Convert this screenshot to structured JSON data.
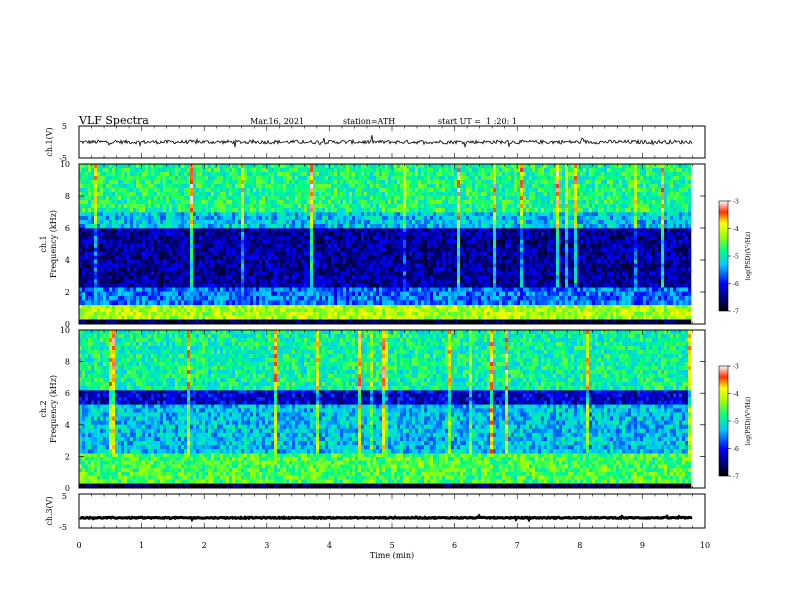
{
  "header": {
    "title": "VLF Spectra",
    "date": "Mar.16, 2021",
    "station": "station=ATH",
    "start_ut": "start UT =  1 :20: 1"
  },
  "chart_data": [
    {
      "type": "line",
      "panel": "ch1-waveform",
      "ylabel": "ch.1(V)",
      "ylim": [
        -5,
        5
      ],
      "yticks": [
        "5",
        "-5"
      ],
      "xlim": [
        0,
        9.8
      ],
      "series": [
        {
          "color": "#000000",
          "description_level": 0,
          "noise_amplitude": 0.6
        }
      ]
    },
    {
      "type": "heatmap",
      "panel": "ch1-spectrogram",
      "ylabel_lines": [
        "ch.1",
        "Frequency (kHz)"
      ],
      "ylim": [
        0,
        10
      ],
      "yticks": [
        "0",
        "2",
        "4",
        "6",
        "8",
        "10"
      ],
      "xlim": [
        0,
        9.8
      ],
      "colorbar": {
        "label": "log(PSD)(V²/Hz)",
        "min": -7,
        "max": -3,
        "ticks": [
          "-3",
          "-4",
          "-5",
          "-6",
          "-7"
        ]
      },
      "bands": [
        {
          "f": [
            0,
            0.3
          ],
          "value": -6.8
        },
        {
          "f": [
            0.3,
            1.2
          ],
          "value": -4.2
        },
        {
          "f": [
            1.2,
            2.3
          ],
          "value": -5.6
        },
        {
          "f": [
            2.3,
            6.0
          ],
          "value": -6.4
        },
        {
          "f": [
            6.0,
            7.0
          ],
          "value": -5.3
        },
        {
          "f": [
            7.0,
            10.0
          ],
          "value": -4.8
        }
      ]
    },
    {
      "type": "heatmap",
      "panel": "ch2-spectrogram",
      "ylabel_lines": [
        "ch.2",
        "Frequency (kHz)"
      ],
      "ylim": [
        0,
        10
      ],
      "yticks": [
        "0",
        "2",
        "4",
        "6",
        "8",
        "10"
      ],
      "xlim": [
        0,
        9.8
      ],
      "colorbar": {
        "label": "log(PSD)(V²/Hz)",
        "min": -7,
        "max": -3,
        "ticks": [
          "-3",
          "-4",
          "-5",
          "-6",
          "-7"
        ]
      },
      "bands": [
        {
          "f": [
            0,
            0.3
          ],
          "value": -6.8
        },
        {
          "f": [
            0.3,
            2.2
          ],
          "value": -4.6
        },
        {
          "f": [
            2.2,
            5.3
          ],
          "value": -5.3
        },
        {
          "f": [
            5.3,
            6.2
          ],
          "value": -6.2
        },
        {
          "f": [
            6.2,
            10.0
          ],
          "value": -4.9
        }
      ]
    },
    {
      "type": "line",
      "panel": "ch3-waveform",
      "ylabel": "ch.3(V)",
      "ylim": [
        -5,
        5
      ],
      "yticks": [
        "5",
        "-5"
      ],
      "xlim": [
        0,
        9.8
      ],
      "series": [
        {
          "color": "#000000",
          "description_level": -2,
          "noise_amplitude": 0.15
        }
      ]
    }
  ],
  "x_axis": {
    "xlabel": "Time (min)",
    "xlim": [
      0,
      10
    ],
    "ticks": [
      "0",
      "1",
      "2",
      "3",
      "4",
      "5",
      "6",
      "7",
      "8",
      "9",
      "10"
    ]
  }
}
